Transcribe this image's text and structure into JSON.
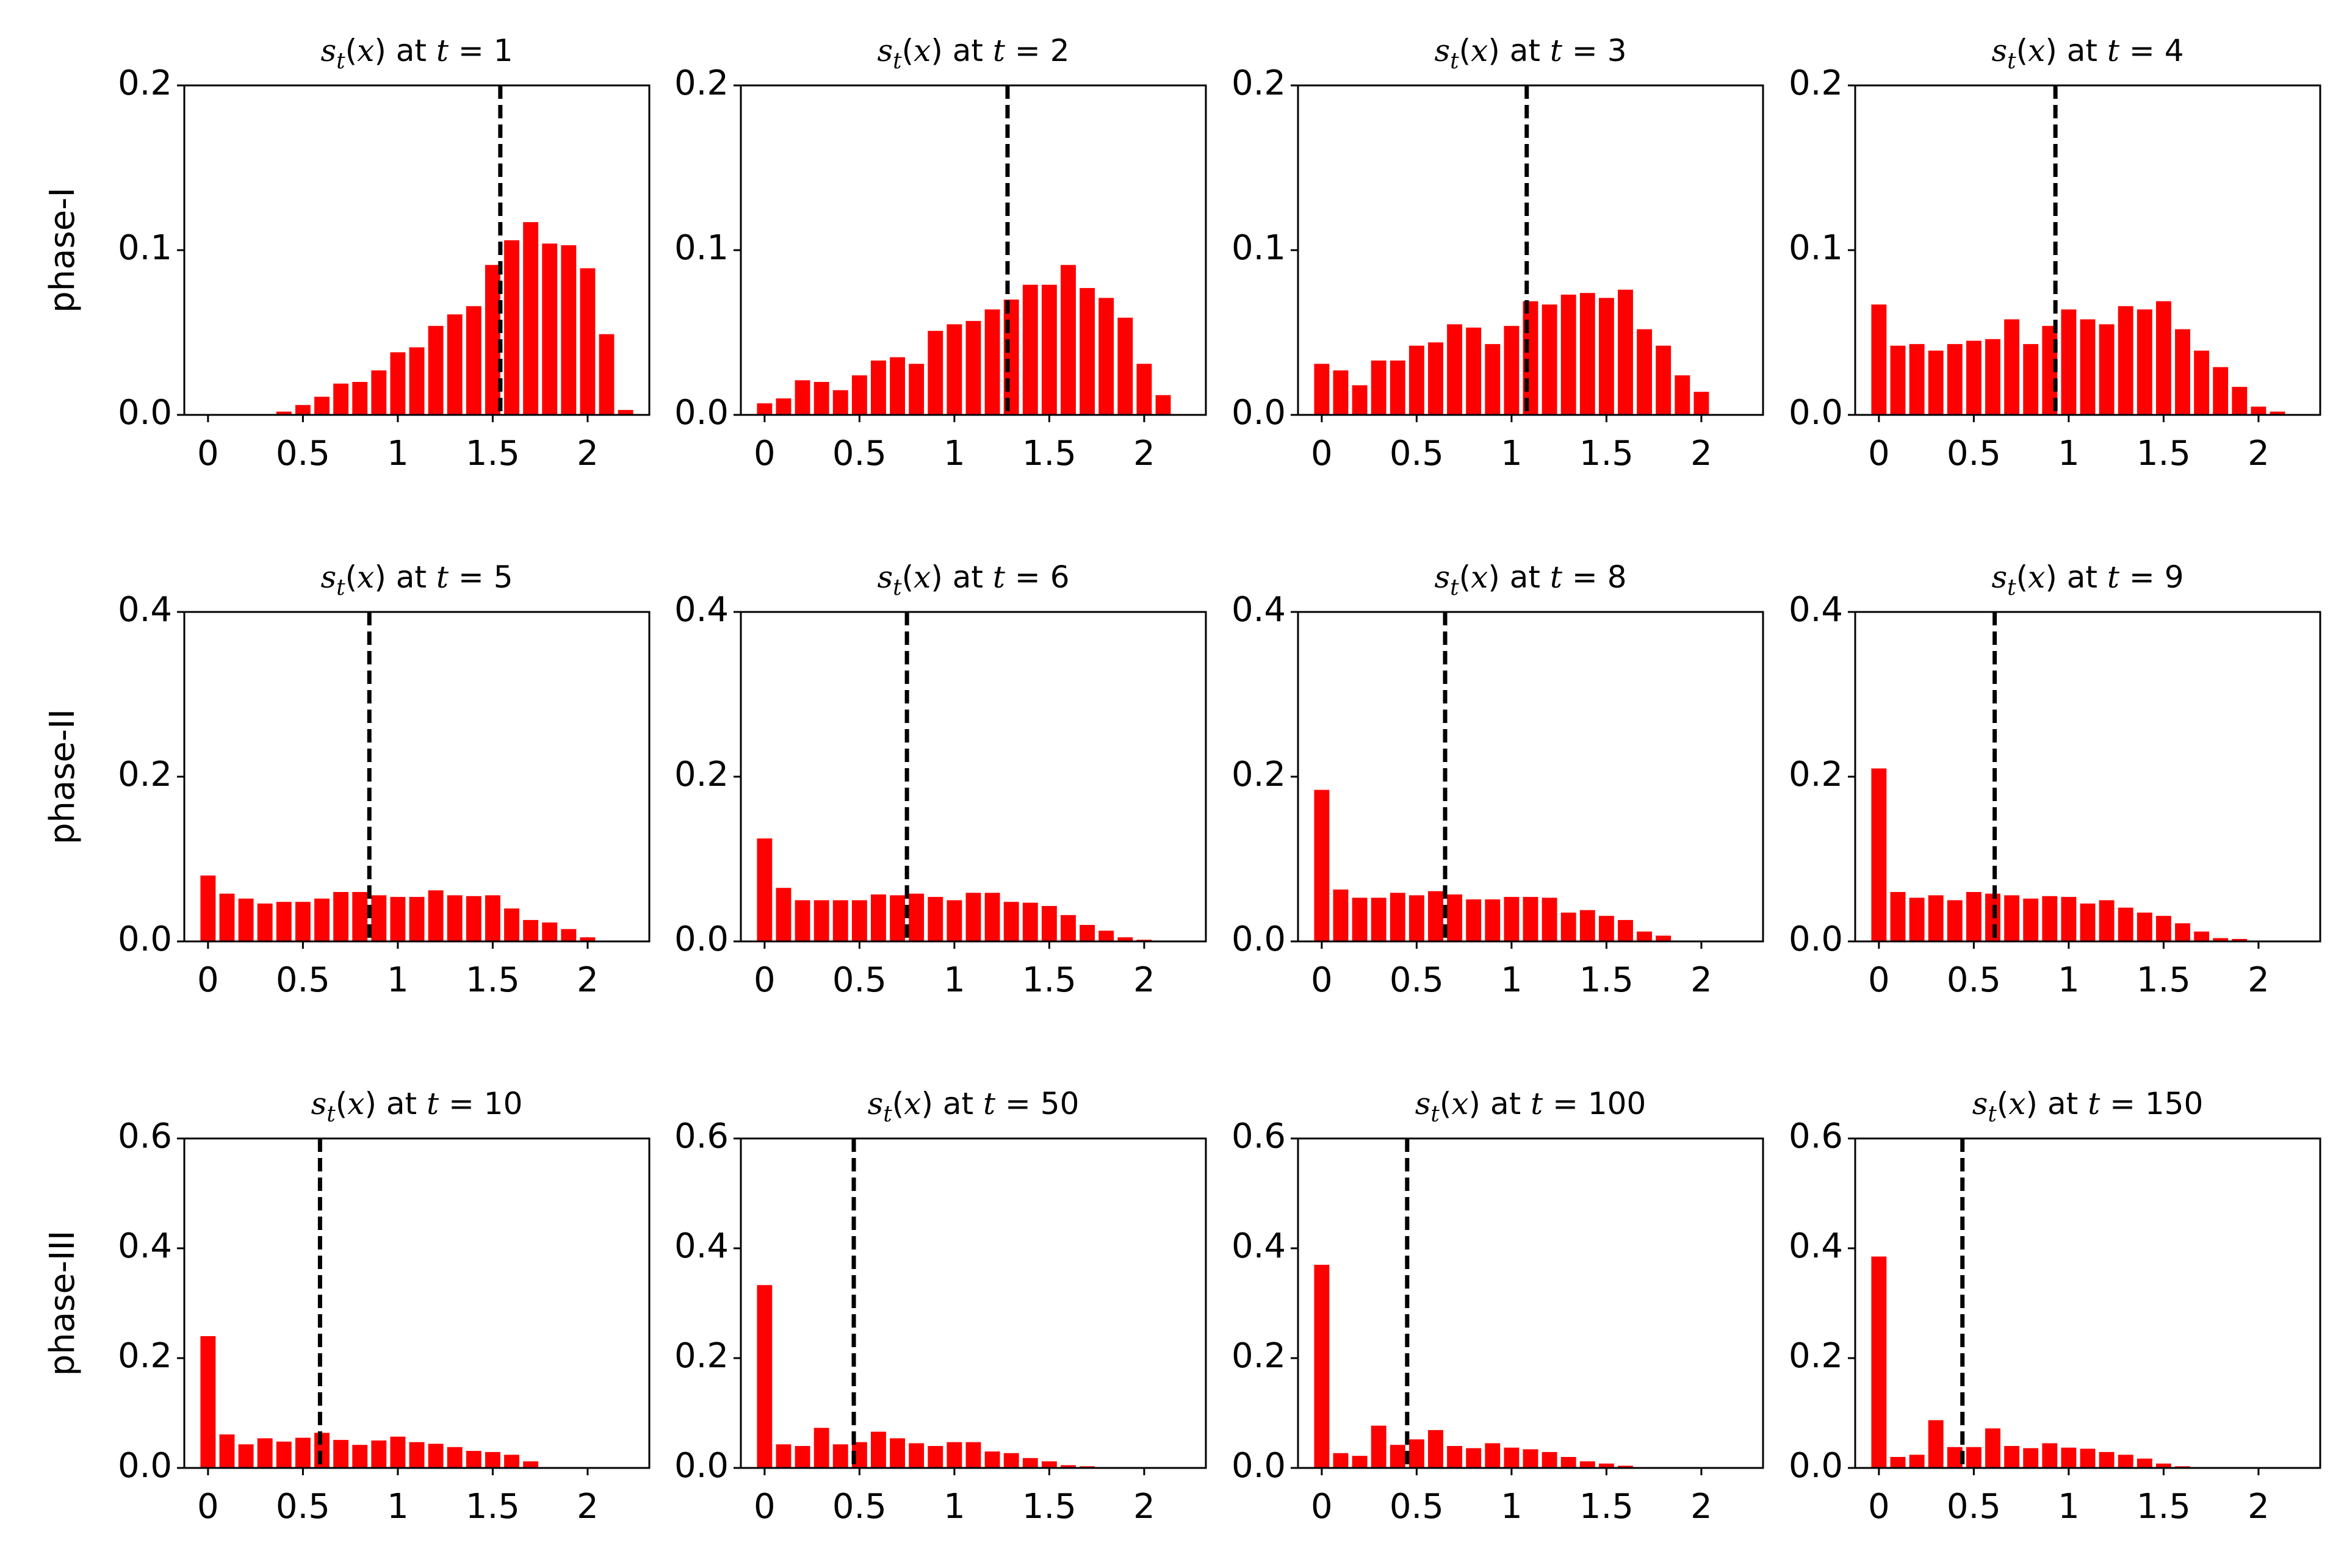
{
  "style": {
    "bar_color": "#ff0000",
    "threshold_color": "#000000",
    "threshold_line": "dashed"
  },
  "rows": [
    {
      "label": "phase-I",
      "ylim": [
        0,
        0.2
      ],
      "yticks": [
        "0.0",
        "0.1",
        "0.2"
      ]
    },
    {
      "label": "phase-II",
      "ylim": [
        0,
        0.4
      ],
      "yticks": [
        "0.0",
        "0.2",
        "0.4"
      ]
    },
    {
      "label": "phase-III",
      "ylim": [
        0,
        0.6
      ],
      "yticks": [
        "0.0",
        "0.2",
        "0.4",
        "0.6"
      ]
    }
  ],
  "xtick_values": [
    0,
    0.5,
    1,
    1.5,
    2
  ],
  "xtick_labels": [
    "0",
    "0.5",
    "1",
    "1.5",
    "2"
  ],
  "xlim": [
    -0.125,
    2.325
  ],
  "chart_data": [
    {
      "type": "bar",
      "row": 0,
      "title_t": "1",
      "threshold": 1.54,
      "x": [
        0,
        0.1,
        0.2,
        0.3,
        0.4,
        0.5,
        0.6,
        0.7,
        0.8,
        0.9,
        1.0,
        1.1,
        1.2,
        1.3,
        1.4,
        1.5,
        1.6,
        1.7,
        1.8,
        1.9,
        2.0,
        2.1,
        2.2
      ],
      "values": [
        0,
        0,
        0,
        0,
        0.002,
        0.006,
        0.011,
        0.019,
        0.02,
        0.027,
        0.038,
        0.041,
        0.054,
        0.061,
        0.066,
        0.091,
        0.106,
        0.117,
        0.104,
        0.103,
        0.089,
        0.049,
        0.003
      ]
    },
    {
      "type": "bar",
      "row": 0,
      "title_t": "2",
      "threshold": 1.28,
      "x": [
        0,
        0.1,
        0.2,
        0.3,
        0.4,
        0.5,
        0.6,
        0.7,
        0.8,
        0.9,
        1.0,
        1.1,
        1.2,
        1.3,
        1.4,
        1.5,
        1.6,
        1.7,
        1.8,
        1.9,
        2.0,
        2.1
      ],
      "values": [
        0.007,
        0.01,
        0.021,
        0.02,
        0.015,
        0.024,
        0.033,
        0.035,
        0.031,
        0.051,
        0.055,
        0.057,
        0.064,
        0.07,
        0.079,
        0.079,
        0.091,
        0.077,
        0.071,
        0.059,
        0.031,
        0.012
      ]
    },
    {
      "type": "bar",
      "row": 0,
      "title_t": "3",
      "threshold": 1.08,
      "x": [
        0,
        0.1,
        0.2,
        0.3,
        0.4,
        0.5,
        0.6,
        0.7,
        0.8,
        0.9,
        1.0,
        1.1,
        1.2,
        1.3,
        1.4,
        1.5,
        1.6,
        1.7,
        1.8,
        1.9,
        2.0
      ],
      "values": [
        0.031,
        0.027,
        0.018,
        0.033,
        0.033,
        0.042,
        0.044,
        0.055,
        0.053,
        0.043,
        0.054,
        0.069,
        0.067,
        0.073,
        0.074,
        0.071,
        0.076,
        0.052,
        0.042,
        0.024,
        0.014
      ]
    },
    {
      "type": "bar",
      "row": 0,
      "title_t": "4",
      "threshold": 0.93,
      "x": [
        0,
        0.1,
        0.2,
        0.3,
        0.4,
        0.5,
        0.6,
        0.7,
        0.8,
        0.9,
        1.0,
        1.1,
        1.2,
        1.3,
        1.4,
        1.5,
        1.6,
        1.7,
        1.8,
        1.9,
        2.0,
        2.1
      ],
      "values": [
        0.067,
        0.042,
        0.043,
        0.039,
        0.043,
        0.045,
        0.046,
        0.058,
        0.043,
        0.054,
        0.064,
        0.058,
        0.055,
        0.066,
        0.064,
        0.069,
        0.052,
        0.039,
        0.029,
        0.017,
        0.005,
        0.002
      ]
    },
    {
      "type": "bar",
      "row": 1,
      "title_t": "5",
      "threshold": 0.85,
      "x": [
        0,
        0.1,
        0.2,
        0.3,
        0.4,
        0.5,
        0.6,
        0.7,
        0.8,
        0.9,
        1.0,
        1.1,
        1.2,
        1.3,
        1.4,
        1.5,
        1.6,
        1.7,
        1.8,
        1.9,
        2.0
      ],
      "values": [
        0.08,
        0.058,
        0.052,
        0.046,
        0.048,
        0.048,
        0.052,
        0.06,
        0.06,
        0.056,
        0.054,
        0.054,
        0.062,
        0.056,
        0.055,
        0.056,
        0.04,
        0.026,
        0.023,
        0.015,
        0.005
      ]
    },
    {
      "type": "bar",
      "row": 1,
      "title_t": "6",
      "threshold": 0.75,
      "x": [
        0,
        0.1,
        0.2,
        0.3,
        0.4,
        0.5,
        0.6,
        0.7,
        0.8,
        0.9,
        1.0,
        1.1,
        1.2,
        1.3,
        1.4,
        1.5,
        1.6,
        1.7,
        1.8,
        1.9,
        2.0
      ],
      "values": [
        0.125,
        0.065,
        0.05,
        0.05,
        0.05,
        0.05,
        0.057,
        0.056,
        0.058,
        0.054,
        0.05,
        0.059,
        0.059,
        0.048,
        0.047,
        0.043,
        0.032,
        0.02,
        0.013,
        0.005,
        0.002
      ]
    },
    {
      "type": "bar",
      "row": 1,
      "title_t": "8",
      "threshold": 0.65,
      "x": [
        0,
        0.1,
        0.2,
        0.3,
        0.4,
        0.5,
        0.6,
        0.7,
        0.8,
        0.9,
        1.0,
        1.1,
        1.2,
        1.3,
        1.4,
        1.5,
        1.6,
        1.7,
        1.8
      ],
      "values": [
        0.184,
        0.063,
        0.053,
        0.053,
        0.059,
        0.056,
        0.061,
        0.057,
        0.051,
        0.051,
        0.054,
        0.054,
        0.053,
        0.035,
        0.038,
        0.031,
        0.026,
        0.012,
        0.007
      ]
    },
    {
      "type": "bar",
      "row": 1,
      "title_t": "9",
      "threshold": 0.61,
      "x": [
        0,
        0.1,
        0.2,
        0.3,
        0.4,
        0.5,
        0.6,
        0.7,
        0.8,
        0.9,
        1.0,
        1.1,
        1.2,
        1.3,
        1.4,
        1.5,
        1.6,
        1.7,
        1.8,
        1.9
      ],
      "values": [
        0.21,
        0.06,
        0.053,
        0.056,
        0.05,
        0.06,
        0.058,
        0.056,
        0.052,
        0.055,
        0.054,
        0.046,
        0.05,
        0.041,
        0.035,
        0.031,
        0.022,
        0.012,
        0.004,
        0.003
      ]
    },
    {
      "type": "bar",
      "row": 2,
      "title_t": "10",
      "threshold": 0.59,
      "x": [
        0,
        0.1,
        0.2,
        0.3,
        0.4,
        0.5,
        0.6,
        0.7,
        0.8,
        0.9,
        1.0,
        1.1,
        1.2,
        1.3,
        1.4,
        1.5,
        1.6,
        1.7
      ],
      "values": [
        0.24,
        0.061,
        0.043,
        0.054,
        0.048,
        0.055,
        0.064,
        0.051,
        0.042,
        0.05,
        0.057,
        0.047,
        0.044,
        0.038,
        0.031,
        0.029,
        0.024,
        0.012
      ]
    },
    {
      "type": "bar",
      "row": 2,
      "title_t": "50",
      "threshold": 0.47,
      "x": [
        0,
        0.1,
        0.2,
        0.3,
        0.4,
        0.5,
        0.6,
        0.7,
        0.8,
        0.9,
        1.0,
        1.1,
        1.2,
        1.3,
        1.4,
        1.5,
        1.6,
        1.7
      ],
      "values": [
        0.333,
        0.043,
        0.04,
        0.073,
        0.043,
        0.047,
        0.066,
        0.054,
        0.045,
        0.04,
        0.047,
        0.047,
        0.03,
        0.027,
        0.018,
        0.012,
        0.005,
        0.003
      ]
    },
    {
      "type": "bar",
      "row": 2,
      "title_t": "100",
      "threshold": 0.45,
      "x": [
        0,
        0.1,
        0.2,
        0.3,
        0.4,
        0.5,
        0.6,
        0.7,
        0.8,
        0.9,
        1.0,
        1.1,
        1.2,
        1.3,
        1.4,
        1.5,
        1.6
      ],
      "values": [
        0.37,
        0.027,
        0.022,
        0.077,
        0.042,
        0.052,
        0.069,
        0.04,
        0.036,
        0.045,
        0.037,
        0.034,
        0.029,
        0.02,
        0.012,
        0.008,
        0.004
      ]
    },
    {
      "type": "bar",
      "row": 2,
      "title_t": "150",
      "threshold": 0.44,
      "x": [
        0,
        0.1,
        0.2,
        0.3,
        0.4,
        0.5,
        0.6,
        0.7,
        0.8,
        0.9,
        1.0,
        1.1,
        1.2,
        1.3,
        1.4,
        1.5,
        1.6
      ],
      "values": [
        0.385,
        0.02,
        0.024,
        0.087,
        0.038,
        0.038,
        0.072,
        0.04,
        0.036,
        0.045,
        0.037,
        0.035,
        0.029,
        0.024,
        0.017,
        0.008,
        0.003
      ]
    }
  ]
}
